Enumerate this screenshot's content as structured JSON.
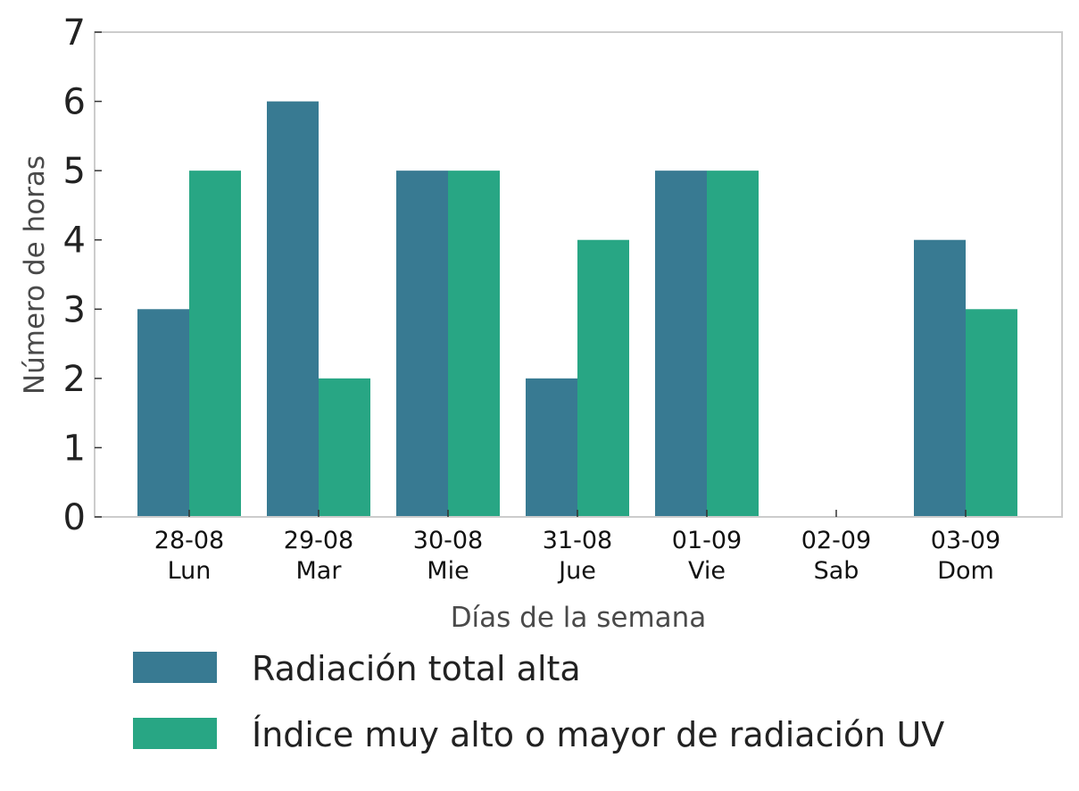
{
  "chart_data": {
    "type": "bar",
    "categories": [
      "28-08\nLun",
      "29-08\nMar",
      "30-08\nMie",
      "31-08\nJue",
      "01-09\nVie",
      "02-09\nSab",
      "03-09\nDom"
    ],
    "series": [
      {
        "name": "Radiación total alta",
        "color": "#387a92",
        "values": [
          3,
          6,
          5,
          2,
          5,
          0,
          4
        ]
      },
      {
        "name": "Índice muy alto o mayor de radiación UV",
        "color": "#28a684",
        "values": [
          5,
          2,
          5,
          4,
          5,
          0,
          3
        ]
      }
    ],
    "xlabel": "Días de la semana",
    "ylabel": "Número de horas",
    "ylim": [
      0,
      7
    ],
    "yticks": [
      0,
      1,
      2,
      3,
      4,
      5,
      6,
      7
    ],
    "grid": false,
    "legend_position": "bottom-left"
  }
}
